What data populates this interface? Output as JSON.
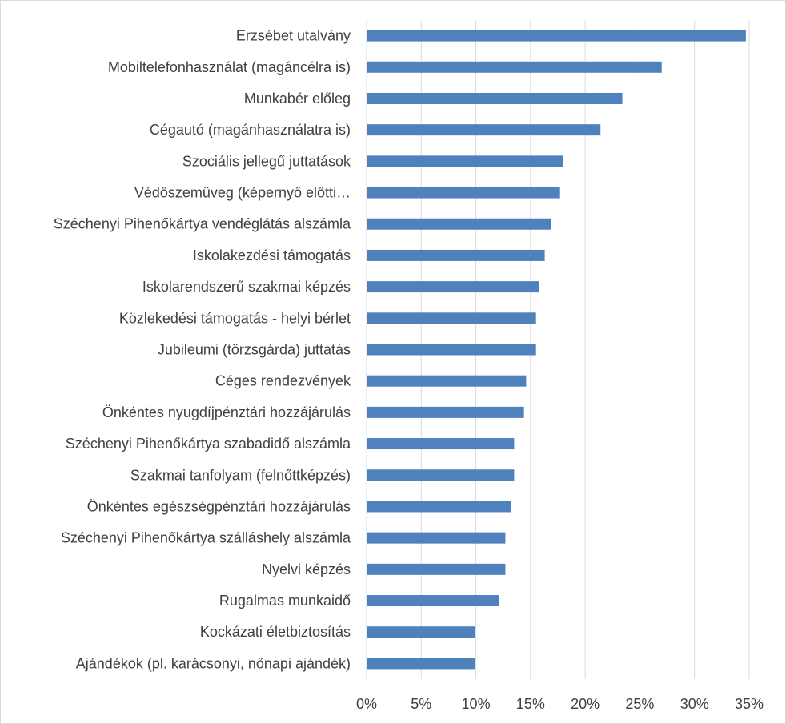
{
  "chart_data": {
    "type": "bar",
    "orientation": "horizontal",
    "title": "",
    "xlabel": "",
    "ylabel": "",
    "categories": [
      "Erzsébet utalvány",
      "Mobiltelefonhasználat (magáncélra is)",
      "Munkabér előleg",
      "Cégautó (magánhasználatra is)",
      "Szociális jellegű juttatások",
      "Védőszemüveg (képernyő előtti…",
      "Széchenyi Pihenőkártya vendéglátás alszámla",
      "Iskolakezdési támogatás",
      "Iskolarendszerű szakmai képzés",
      "Közlekedési támogatás - helyi bérlet",
      "Jubileumi (törzsgárda) juttatás",
      "Céges rendezvények",
      "Önkéntes nyugdíjpénztári hozzájárulás",
      "Széchenyi Pihenőkártya szabadidő alszámla",
      "Szakmai tanfolyam (felnőttképzés)",
      "Önkéntes egészségpénztári hozzájárulás",
      "Széchenyi Pihenőkártya szálláshely alszámla",
      "Nyelvi képzés",
      "Rugalmas munkaidő",
      "Kockázati életbiztosítás",
      "Ajándékok (pl. karácsonyi, nőnapi ajándék)"
    ],
    "values": [
      34.7,
      27.0,
      23.4,
      21.4,
      18.0,
      17.7,
      16.9,
      16.3,
      15.8,
      15.5,
      15.5,
      14.6,
      14.4,
      13.5,
      13.5,
      13.2,
      12.7,
      12.7,
      12.1,
      9.9,
      9.9
    ],
    "value_unit": "%",
    "xlim": [
      0,
      35
    ],
    "xticks": [
      0,
      5,
      10,
      15,
      20,
      25,
      30,
      35
    ],
    "xtick_labels": [
      "0%",
      "5%",
      "10%",
      "15%",
      "20%",
      "25%",
      "30%",
      "35%"
    ],
    "grid": "vertical",
    "legend": "none",
    "bar_color": "#4f81bd",
    "grid_color": "#d9d9d9"
  }
}
